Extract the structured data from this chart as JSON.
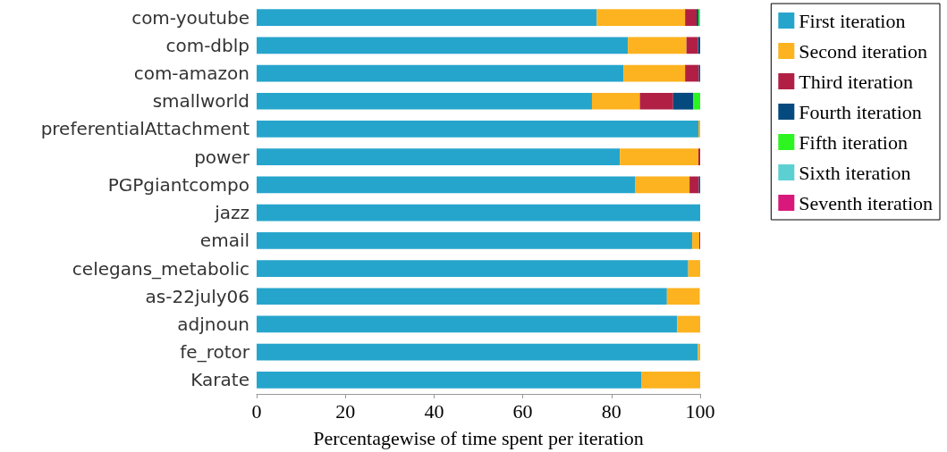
{
  "chart_data": {
    "type": "bar",
    "orientation": "horizontal",
    "stacked": true,
    "xlabel": "Percentagewise of time spent per iteration",
    "categories": [
      "com-youtube",
      "com-dblp",
      "com-amazon",
      "smallworld",
      "preferentialAttachment",
      "power",
      "PGPgiantcompo",
      "jazz",
      "email",
      "celegans_metabolic",
      "as-22july06",
      "adjnoun",
      "fe_rotor",
      "Karate"
    ],
    "series": [
      {
        "name": "First iteration",
        "color": "#26a5cc",
        "values": [
          76.7,
          83.7,
          82.7,
          75.6,
          99.6,
          81.9,
          85.4,
          100,
          98.2,
          97.3,
          92.5,
          94.8,
          99.5,
          86.7
        ]
      },
      {
        "name": "Second iteration",
        "color": "#fdb21f",
        "values": [
          19.9,
          13.2,
          13.9,
          10.8,
          0.4,
          17.7,
          12.2,
          null,
          1.6,
          2.7,
          7.4,
          5.2,
          0.5,
          13.3
        ]
      },
      {
        "name": "Third iteration",
        "color": "#b12044",
        "values": [
          2.6,
          2.6,
          3.1,
          7.5,
          null,
          0.4,
          2.1,
          null,
          0.2,
          null,
          null,
          null,
          null,
          null
        ]
      },
      {
        "name": "Fourth iteration",
        "color": "#044a7e",
        "values": [
          0.4,
          0.5,
          0.3,
          4.5,
          null,
          null,
          0.3,
          null,
          null,
          null,
          null,
          null,
          null,
          null
        ]
      },
      {
        "name": "Fifth iteration",
        "color": "#2cf51f",
        "values": [
          0.2,
          null,
          null,
          1.6,
          null,
          null,
          null,
          null,
          null,
          null,
          null,
          null,
          null,
          null
        ]
      },
      {
        "name": "Sixth iteration",
        "color": "#5ccfd3",
        "values": [
          0.2,
          null,
          null,
          null,
          null,
          null,
          null,
          null,
          null,
          null,
          null,
          null,
          null,
          null
        ]
      },
      {
        "name": "Seventh iteration",
        "color": "#d8197b",
        "values": [
          null,
          null,
          null,
          null,
          null,
          null,
          null,
          null,
          null,
          null,
          null,
          null,
          null,
          null
        ]
      }
    ],
    "xlim": [
      0,
      100
    ],
    "xticks": [
      0,
      20,
      40,
      60,
      80,
      100
    ],
    "grid": false,
    "legend": "top right"
  }
}
